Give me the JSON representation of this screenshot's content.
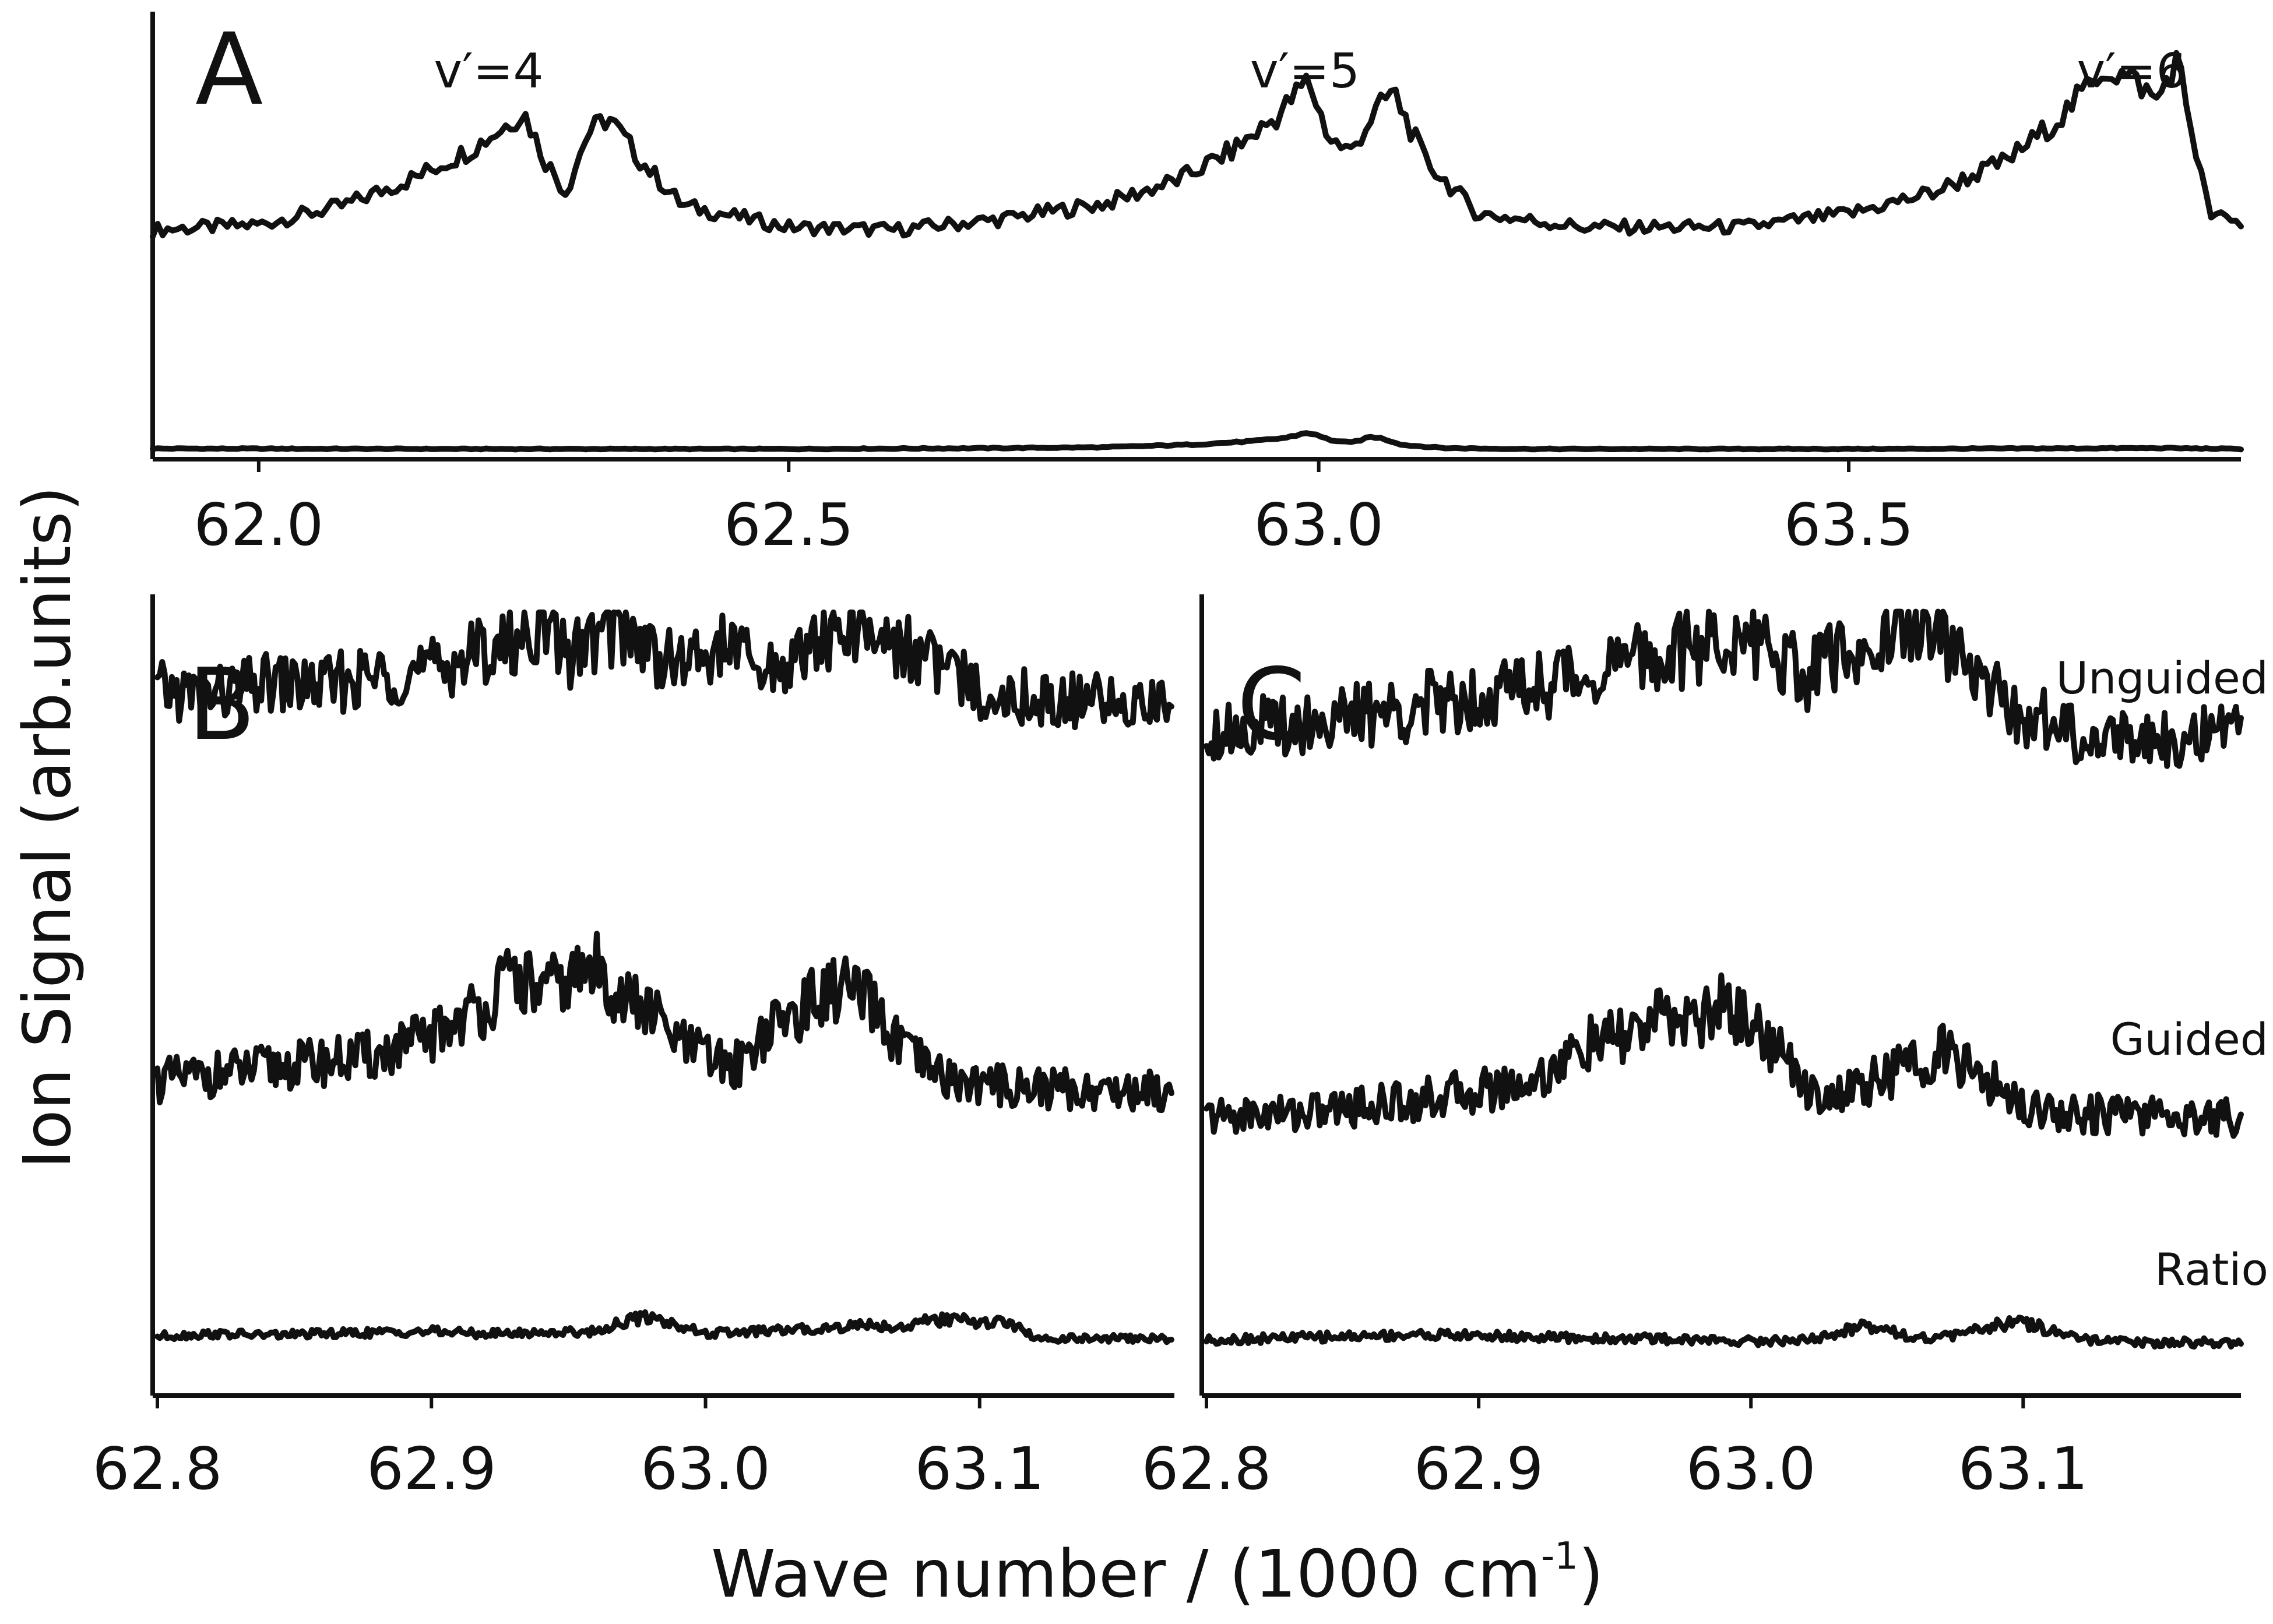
{
  "chart_data": [
    {
      "panel": "A",
      "type": "line",
      "xlim": [
        61.9,
        63.87
      ],
      "xticks": [
        62.0,
        62.5,
        63.0,
        63.5
      ],
      "tick_labels": [
        "62.0",
        "62.5",
        "63.0",
        "63.5"
      ],
      "annotations": [
        "v′=4",
        "v′=5",
        "v′=6"
      ],
      "annotation_x": [
        62.25,
        63.02,
        63.8
      ],
      "series": [
        {
          "x": [
            61.9,
            62.0,
            62.08,
            62.15,
            62.2,
            62.23,
            62.25,
            62.27,
            62.29,
            62.31,
            62.33,
            62.36,
            62.4,
            62.5,
            62.6,
            62.7,
            62.8,
            62.87,
            62.92,
            62.96,
            62.99,
            63.01,
            63.03,
            63.05,
            63.07,
            63.1,
            63.15,
            63.25,
            63.4,
            63.5,
            63.58,
            63.65,
            63.7,
            63.74,
            63.77,
            63.79,
            63.81,
            63.82,
            63.84,
            63.87
          ],
          "y": [
            0.36,
            0.38,
            0.45,
            0.56,
            0.66,
            0.74,
            0.8,
            0.62,
            0.5,
            0.72,
            0.78,
            0.62,
            0.45,
            0.37,
            0.36,
            0.4,
            0.46,
            0.55,
            0.66,
            0.78,
            0.92,
            0.7,
            0.65,
            0.78,
            0.88,
            0.62,
            0.42,
            0.37,
            0.37,
            0.42,
            0.5,
            0.62,
            0.78,
            0.96,
            0.92,
            0.84,
            1.0,
            0.8,
            0.42,
            0.38
          ]
        },
        {
          "x": [
            61.9,
            62.2,
            62.5,
            62.7,
            62.8,
            62.88,
            62.94,
            62.97,
            62.99,
            63.01,
            63.03,
            63.05,
            63.06,
            63.08,
            63.12,
            63.2,
            63.5,
            63.8,
            63.87
          ],
          "y": [
            0.07,
            0.06,
            0.06,
            0.08,
            0.1,
            0.16,
            0.24,
            0.32,
            0.44,
            0.27,
            0.2,
            0.34,
            0.3,
            0.15,
            0.08,
            0.06,
            0.06,
            0.08,
            0.06
          ]
        }
      ]
    },
    {
      "panel": "B",
      "type": "line",
      "xlim": [
        62.8,
        63.17
      ],
      "xticks": [
        62.8,
        62.9,
        63.0,
        63.1
      ],
      "tick_labels": [
        "62.8",
        "62.9",
        "63.0",
        "63.1"
      ],
      "series": [
        {
          "x": [
            62.8,
            62.82,
            62.84,
            62.86,
            62.88,
            62.9,
            62.91,
            62.92,
            62.93,
            62.94,
            62.95,
            62.96,
            62.97,
            62.98,
            62.99,
            63.0,
            63.01,
            63.02,
            63.03,
            63.04,
            63.05,
            63.06,
            63.07,
            63.08,
            63.09,
            63.1,
            63.12,
            63.14,
            63.17
          ],
          "y": [
            0.72,
            0.7,
            0.75,
            0.74,
            0.78,
            0.8,
            0.84,
            0.88,
            0.9,
            0.98,
            0.86,
            0.92,
            0.96,
            0.88,
            0.82,
            0.86,
            0.9,
            0.78,
            0.83,
            0.9,
            0.96,
            0.94,
            0.9,
            0.86,
            0.78,
            0.72,
            0.69,
            0.68,
            0.67
          ]
        },
        {
          "x": [
            62.8,
            62.82,
            62.84,
            62.86,
            62.88,
            62.9,
            62.91,
            62.92,
            62.93,
            62.94,
            62.95,
            62.96,
            62.97,
            62.98,
            62.99,
            63.0,
            63.01,
            63.02,
            63.03,
            63.04,
            63.05,
            63.06,
            63.07,
            63.08,
            63.09,
            63.1,
            63.12,
            63.14,
            63.17
          ],
          "y": [
            0.38,
            0.4,
            0.42,
            0.44,
            0.46,
            0.52,
            0.58,
            0.62,
            0.72,
            0.66,
            0.7,
            0.74,
            0.64,
            0.6,
            0.5,
            0.46,
            0.42,
            0.52,
            0.58,
            0.64,
            0.68,
            0.62,
            0.5,
            0.42,
            0.38,
            0.37,
            0.36,
            0.35,
            0.35
          ]
        },
        {
          "x": [
            62.8,
            62.82,
            62.84,
            62.86,
            62.88,
            62.9,
            62.92,
            62.94,
            62.96,
            62.97,
            62.98,
            62.99,
            63.0,
            63.02,
            63.04,
            63.06,
            63.07,
            63.08,
            63.09,
            63.1,
            63.11,
            63.12,
            63.13,
            63.17
          ],
          "y": [
            0.08,
            0.1,
            0.09,
            0.1,
            0.11,
            0.12,
            0.1,
            0.11,
            0.12,
            0.2,
            0.24,
            0.17,
            0.1,
            0.12,
            0.14,
            0.18,
            0.15,
            0.2,
            0.22,
            0.19,
            0.2,
            0.07,
            0.06,
            0.06
          ]
        }
      ]
    },
    {
      "panel": "C",
      "type": "line",
      "xlim": [
        62.8,
        63.18
      ],
      "xticks": [
        62.8,
        62.9,
        63.0,
        63.1
      ],
      "tick_labels": [
        "62.8",
        "62.9",
        "63.0",
        "63.1"
      ],
      "series": [
        {
          "name": "Unguided",
          "x": [
            62.8,
            62.82,
            62.84,
            62.86,
            62.88,
            62.9,
            62.92,
            62.94,
            62.96,
            62.98,
            63.0,
            63.01,
            63.02,
            63.03,
            63.04,
            63.05,
            63.06,
            63.07,
            63.08,
            63.09,
            63.1,
            63.12,
            63.14,
            63.18
          ],
          "y": [
            0.63,
            0.64,
            0.66,
            0.68,
            0.71,
            0.75,
            0.78,
            0.82,
            0.86,
            0.9,
            0.94,
            0.88,
            0.8,
            0.86,
            0.9,
            0.94,
            0.98,
            0.92,
            0.82,
            0.74,
            0.68,
            0.62,
            0.61,
            0.61
          ]
        },
        {
          "name": "Guided",
          "x": [
            62.8,
            62.82,
            62.84,
            62.86,
            62.88,
            62.9,
            62.92,
            62.93,
            62.94,
            62.95,
            62.96,
            62.97,
            62.98,
            62.99,
            63.0,
            63.01,
            63.02,
            63.03,
            63.04,
            63.05,
            63.06,
            63.07,
            63.08,
            63.1,
            63.12,
            63.18
          ],
          "y": [
            0.34,
            0.35,
            0.36,
            0.38,
            0.4,
            0.43,
            0.46,
            0.52,
            0.58,
            0.6,
            0.64,
            0.68,
            0.66,
            0.72,
            0.66,
            0.56,
            0.45,
            0.4,
            0.44,
            0.48,
            0.52,
            0.56,
            0.5,
            0.38,
            0.35,
            0.34
          ]
        },
        {
          "name": "Ratio",
          "x": [
            62.8,
            62.82,
            62.84,
            62.86,
            62.88,
            62.9,
            62.92,
            62.94,
            62.96,
            62.98,
            63.0,
            63.02,
            63.03,
            63.04,
            63.05,
            63.06,
            63.07,
            63.08,
            63.09,
            63.1,
            63.11,
            63.12,
            63.14,
            63.18
          ],
          "y": [
            0.09,
            0.1,
            0.11,
            0.12,
            0.13,
            0.12,
            0.11,
            0.1,
            0.1,
            0.09,
            0.08,
            0.09,
            0.12,
            0.2,
            0.18,
            0.1,
            0.11,
            0.14,
            0.2,
            0.22,
            0.16,
            0.09,
            0.07,
            0.07
          ]
        }
      ]
    }
  ],
  "ylabel": "Ion Signal (arb.units)",
  "xlabel": "Wave number / (1000 cm",
  "xlabel_sup": "-1",
  "xlabel_end": ")",
  "colors": {
    "line": "#111111",
    "background": "#ffffff"
  }
}
